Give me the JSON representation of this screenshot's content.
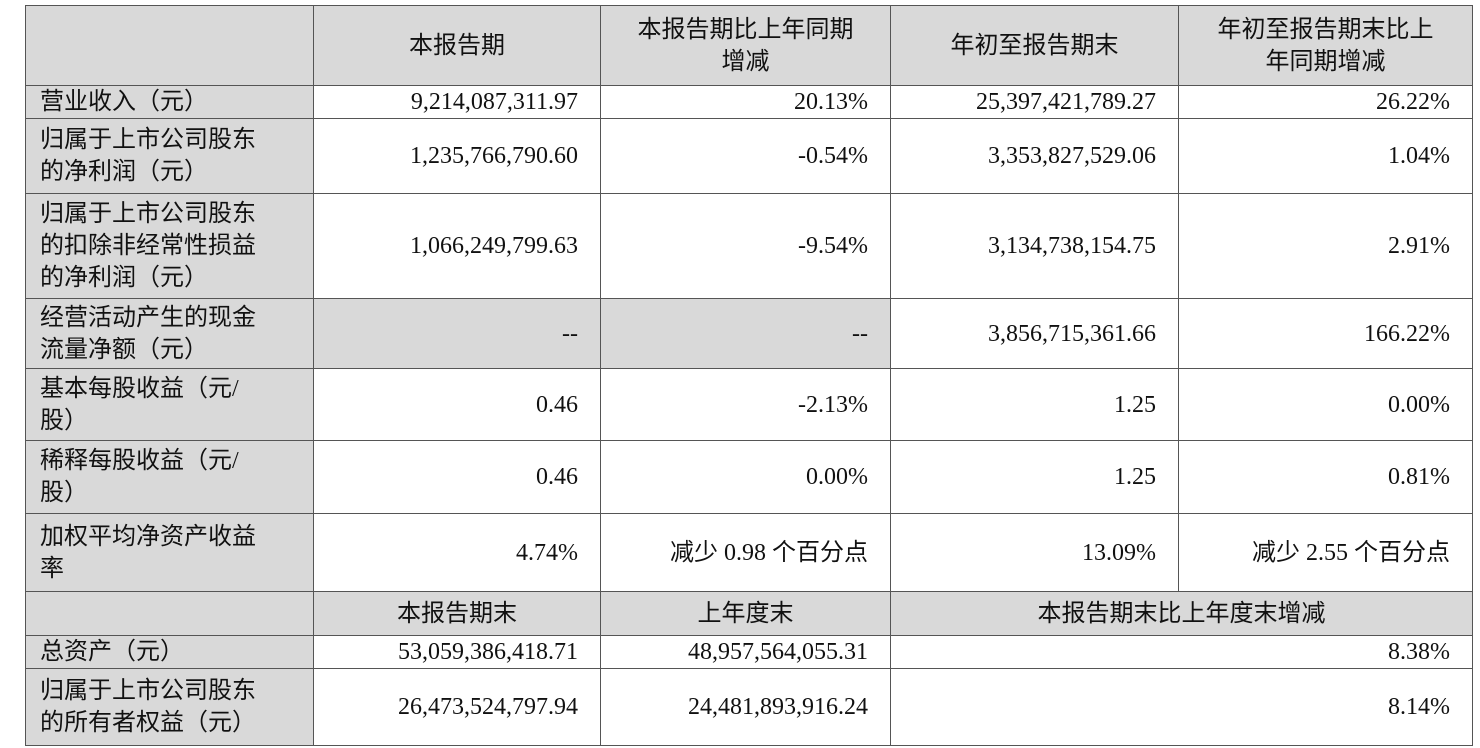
{
  "header": [
    "",
    "本报告期",
    "本报告期比上年同期\n增减",
    "年初至报告期末",
    "年初至报告期末比上\n年同期增减"
  ],
  "rows": [
    {
      "label": "营业收入（元）",
      "values": [
        "9,214,087,311.97",
        "20.13%",
        "25,397,421,789.27",
        "26.22%"
      ]
    },
    {
      "label": "归属于上市公司股东\n的净利润（元）",
      "values": [
        "1,235,766,790.60",
        "-0.54%",
        "3,353,827,529.06",
        "1.04%"
      ]
    },
    {
      "label": "归属于上市公司股东\n的扣除非经常性损益\n的净利润（元）",
      "values": [
        "1,066,249,799.63",
        "-9.54%",
        "3,134,738,154.75",
        "2.91%"
      ]
    },
    {
      "label": "经营活动产生的现金\n流量净额（元）",
      "values": [
        "--",
        "--",
        "3,856,715,361.66",
        "166.22%"
      ]
    },
    {
      "label": "基本每股收益（元/\n股）",
      "values": [
        "0.46",
        "-2.13%",
        "1.25",
        "0.00%"
      ]
    },
    {
      "label": "稀释每股收益（元/\n股）",
      "values": [
        "0.46",
        "0.00%",
        "1.25",
        "0.81%"
      ]
    },
    {
      "label": "加权平均净资产收益\n率",
      "values": [
        "4.74%",
        "减少 0.98 个百分点",
        "13.09%",
        "减少 2.55 个百分点"
      ]
    }
  ],
  "header2": [
    "",
    "本报告期末",
    "上年度末",
    "本报告期末比上年度末增减"
  ],
  "rows2": [
    {
      "label": "总资产（元）",
      "values": [
        "53,059,386,418.71",
        "48,957,564,055.31",
        "8.38%"
      ]
    },
    {
      "label": "归属于上市公司股东\n的所有者权益（元）",
      "values": [
        "26,473,524,797.94",
        "24,481,893,916.24",
        "8.14%"
      ]
    }
  ],
  "colors": {
    "header_bg": "#d9d9d9",
    "border": "#555555"
  }
}
